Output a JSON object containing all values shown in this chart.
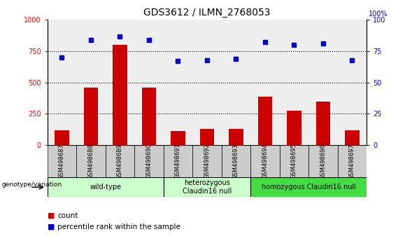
{
  "title": "GDS3612 / ILMN_2768053",
  "samples": [
    "GSM498687",
    "GSM498688",
    "GSM498689",
    "GSM498690",
    "GSM498691",
    "GSM498692",
    "GSM498693",
    "GSM498694",
    "GSM498695",
    "GSM498696",
    "GSM498697"
  ],
  "counts": [
    120,
    460,
    800,
    460,
    115,
    130,
    130,
    385,
    275,
    350,
    120
  ],
  "percentiles": [
    70,
    84,
    87,
    84,
    67,
    68,
    69,
    82,
    80,
    81,
    68
  ],
  "ylim_left": [
    0,
    1000
  ],
  "ylim_right": [
    0,
    100
  ],
  "yticks_left": [
    0,
    250,
    500,
    750,
    1000
  ],
  "yticks_right": [
    0,
    25,
    50,
    75,
    100
  ],
  "bar_color": "#cc0000",
  "scatter_color": "#0000cc",
  "group_spans": [
    [
      0,
      3,
      "wild-type",
      "#ccffcc"
    ],
    [
      4,
      6,
      "heterozygous\nClaudin16 null",
      "#ccffcc"
    ],
    [
      7,
      10,
      "homozygous Claudin16 null",
      "#44dd44"
    ]
  ],
  "group_label": "genotype/variation",
  "legend_count_label": "count",
  "legend_pct_label": "percentile rank within the sample",
  "bg_color": "#ffffff",
  "plot_bg_color": "#eeeeee",
  "tick_bg_color": "#cccccc",
  "grid_color": "#000000",
  "spine_color": "#000000"
}
